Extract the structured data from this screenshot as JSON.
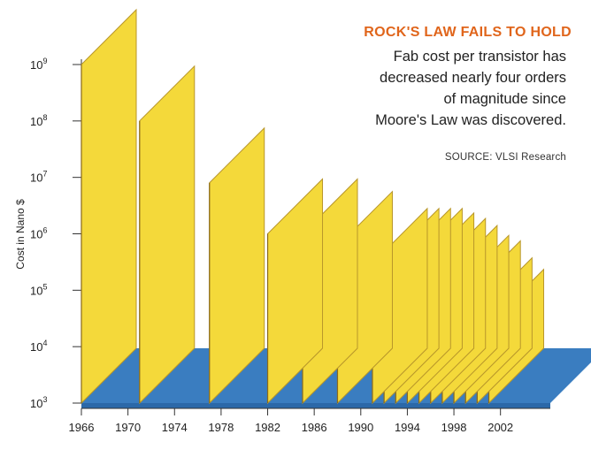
{
  "chart_data": {
    "type": "bar",
    "title": "ROCK'S LAW FAILS TO HOLD",
    "subtitle_lines": [
      "Fab cost per transistor has",
      "decreased nearly four orders",
      "of magnitude since",
      "Moore's Law was discovered."
    ],
    "source": "SOURCE: VLSI Research",
    "ylabel": "Cost in Nano $",
    "xlabel": "",
    "y_scale": "log",
    "ylim": [
      1000,
      1000000000
    ],
    "y_ticks": [
      {
        "value": 1000,
        "base": "10",
        "exp": "3"
      },
      {
        "value": 10000,
        "base": "10",
        "exp": "4"
      },
      {
        "value": 100000,
        "base": "10",
        "exp": "5"
      },
      {
        "value": 1000000,
        "base": "10",
        "exp": "6"
      },
      {
        "value": 10000000,
        "base": "10",
        "exp": "7"
      },
      {
        "value": 100000000,
        "base": "10",
        "exp": "8"
      },
      {
        "value": 1000000000,
        "base": "10",
        "exp": "9"
      }
    ],
    "xlim": [
      1966,
      2004
    ],
    "x_ticks": [
      "1966",
      "1970",
      "1974",
      "1978",
      "1982",
      "1986",
      "1990",
      "1994",
      "1998",
      "2002"
    ],
    "x": [
      1966,
      1971,
      1977,
      1982,
      1985,
      1988,
      1991,
      1992,
      1993,
      1994,
      1995,
      1996,
      1997,
      1998,
      1999,
      2000,
      2001
    ],
    "values": [
      1000000000,
      100000000,
      8000000,
      1000000,
      1000000,
      600000,
      300000,
      300000,
      300000,
      300000,
      250000,
      200000,
      150000,
      100000,
      80000,
      40000,
      25000
    ],
    "colors": {
      "bar_front": "#f4d93a",
      "bar_edge": "#b8962a",
      "floor": "#3a7dc0",
      "floor_dark": "#2b68a8"
    }
  }
}
